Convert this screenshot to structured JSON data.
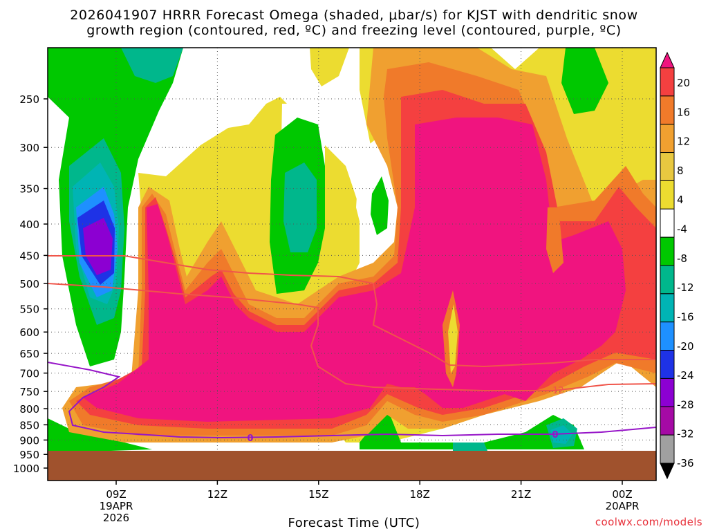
{
  "title_line1": "2026041907 HRRR Forecast Omega (shaded, μbar/s) for KJST with dendritic snow",
  "title_line2": "growth region (contoured, red, ºC) and freezing level (contoured, purple, ºC)",
  "credit": "coolwx.com/models",
  "chart_data": {
    "type": "heatmap",
    "title": "2026041907 HRRR Forecast Omega (shaded, μbar/s) for KJST with dendritic snow growth region (contoured, red, ºC) and freezing level (contoured, purple, ºC)",
    "xlabel": "Forecast Time (UTC)",
    "ylabel": "",
    "x_ticks": [
      {
        "t": 9,
        "label": "09Z",
        "sub1": "19APR",
        "sub2": "2026"
      },
      {
        "t": 12,
        "label": "12Z",
        "sub1": "",
        "sub2": ""
      },
      {
        "t": 15,
        "label": "15Z",
        "sub1": "",
        "sub2": ""
      },
      {
        "t": 18,
        "label": "18Z",
        "sub1": "",
        "sub2": ""
      },
      {
        "t": 21,
        "label": "21Z",
        "sub1": "",
        "sub2": ""
      },
      {
        "t": 24,
        "label": "00Z",
        "sub1": "20APR",
        "sub2": ""
      }
    ],
    "xlim": [
      7,
      25
    ],
    "y_scale": "log-pressure (hPa)",
    "y_ticks": [
      250,
      300,
      350,
      400,
      450,
      500,
      550,
      600,
      650,
      700,
      750,
      800,
      850,
      900,
      950,
      1000
    ],
    "ylim": [
      1000,
      200
    ],
    "ground_top_hPa": 925,
    "colorbar": {
      "labels": [
        "20",
        "16",
        "12",
        "8",
        "4",
        "-4",
        "-8",
        "-12",
        "-16",
        "-20",
        "-24",
        "-28",
        "-32",
        "-36"
      ],
      "colors": [
        "#f0147f",
        "#f44040",
        "#f07a2a",
        "#f0a030",
        "#e8c840",
        "#ecdc30",
        "#ffffff",
        "#00c800",
        "#00b78c",
        "#00b4b4",
        "#1e90ff",
        "#1e32e6",
        "#8c00d2",
        "#a50aa5",
        "#a0a0a0",
        "#000000"
      ]
    },
    "contours": [
      {
        "name": "dendritic snow growth region",
        "color": "#f0554a",
        "labels": [
          "-12"
        ]
      },
      {
        "name": "freezing level",
        "color": "#9614c8",
        "labels": [
          "0",
          "0"
        ]
      }
    ],
    "grid": "dotted"
  }
}
